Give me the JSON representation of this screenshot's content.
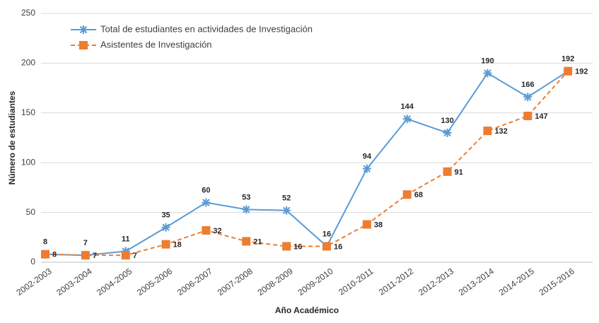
{
  "chart_data": {
    "type": "line",
    "x_label": "Año Académico",
    "y_label": "Número de estudiantes",
    "categories": [
      "2002-2003",
      "2003-2004",
      "2004-2005",
      "2005-2006",
      "2006-2007",
      "2007-2008",
      "2008-2009",
      "2009-2010",
      "2010-2011",
      "2011-2012",
      "2012-2013",
      "2013-2014",
      "2014-2015",
      "2015-2016"
    ],
    "series": [
      {
        "name": "Total de estudiantes en actividades de Investigación",
        "color": "#5b9bd5",
        "marker": "star",
        "dashed": false,
        "label_position": "above",
        "values": [
          8,
          7,
          11,
          35,
          60,
          53,
          52,
          16,
          94,
          144,
          130,
          190,
          166,
          192
        ]
      },
      {
        "name": "Asistentes de Investigación",
        "color": "#ed7d31",
        "marker": "square",
        "dashed": true,
        "label_position": "right",
        "values": [
          8,
          7,
          7,
          18,
          32,
          21,
          16,
          16,
          38,
          68,
          91,
          132,
          147,
          192
        ]
      }
    ],
    "ylim": [
      0,
      250
    ],
    "yticks": [
      0,
      50,
      100,
      150,
      200,
      250
    ],
    "grid": true,
    "legend": "top-left"
  }
}
